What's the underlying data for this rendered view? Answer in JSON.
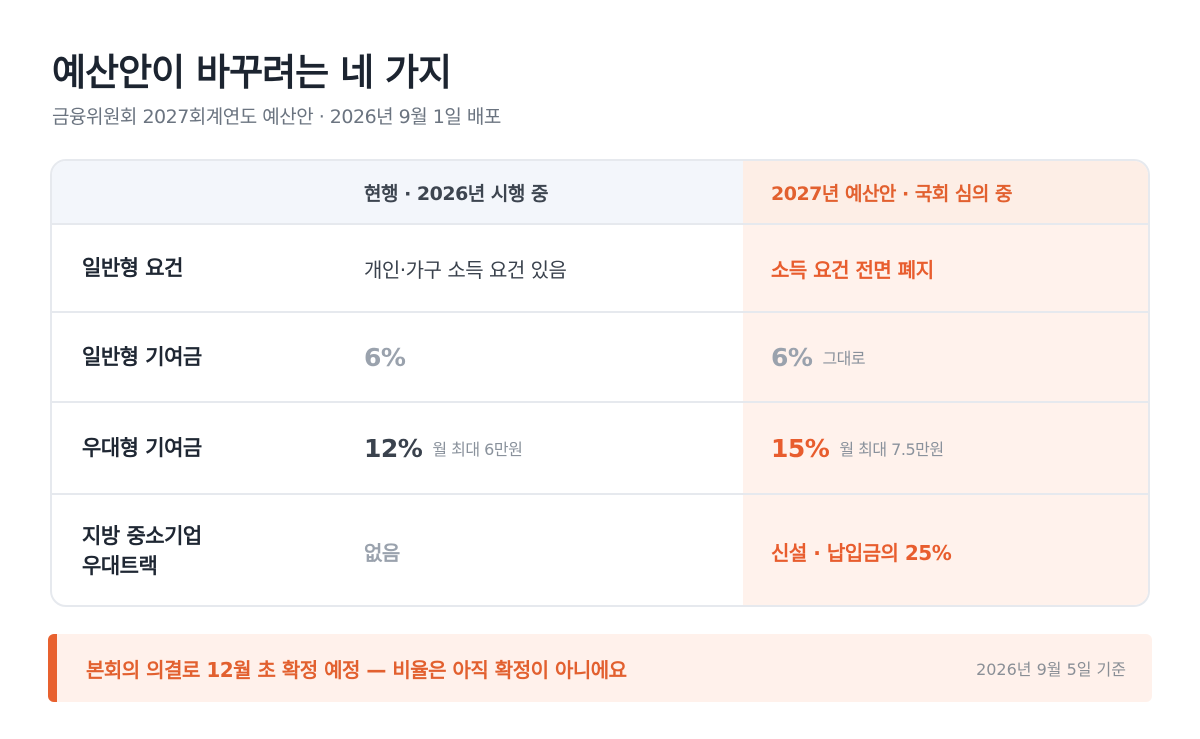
{
  "header": {
    "title": "예산안이 바꾸려는 네 가지",
    "subtitle": "금융위원회 2027회계연도 예산안 · 2026년 9월 1일 배포"
  },
  "table": {
    "columns": {
      "current": "현행 · 2026년 시행 중",
      "proposed": "2027년 예산안 · 국회 심의 중"
    },
    "rows": [
      {
        "label": "일반형 요건",
        "current": "개인·가구 소득 요건 있음",
        "proposed": "소득 요건 전면 폐지"
      },
      {
        "label": "일반형 기여금",
        "current": "6%",
        "proposed": "6%",
        "proposed_note": "그대로"
      },
      {
        "label": "우대형 기여금",
        "current": "12%",
        "current_note": "월 최대 6만원",
        "proposed": "15%",
        "proposed_note": "월 최대 7.5만원"
      },
      {
        "label": "지방 중소기업\n우대트랙",
        "current": "없음",
        "proposed": "신설 · 납입금의 25%"
      }
    ]
  },
  "note": {
    "text": "본회의 의결로 12월 초 확정 예정 — 비율은 아직 확정이 아니에요",
    "date": "2026년 9월 5일 기준"
  },
  "colors": {
    "accent": "#e85d2e",
    "highlight_bg": "#fff2ec",
    "header_bg": "#f3f6fb",
    "border": "#e6e9ee"
  }
}
